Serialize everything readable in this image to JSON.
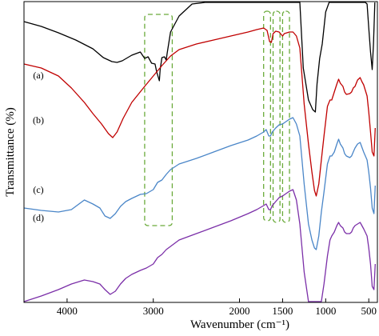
{
  "chart_data": {
    "type": "line",
    "xlabel": "Wavenumber (cm⁻¹)",
    "ylabel": "Transmittance (%)",
    "xlim": [
      4500,
      400
    ],
    "x_reversed": true,
    "xticks": [
      4000,
      3000,
      2000,
      1500,
      1000,
      500
    ],
    "y_ticks_shown": false,
    "grid": false,
    "series": [
      {
        "name": "(a)",
        "color": "#000000",
        "points": [
          [
            4500,
            118
          ],
          [
            4300,
            112
          ],
          [
            4100,
            104
          ],
          [
            3900,
            95
          ],
          [
            3700,
            84
          ],
          [
            3580,
            73
          ],
          [
            3480,
            68
          ],
          [
            3420,
            67
          ],
          [
            3360,
            69
          ],
          [
            3250,
            76
          ],
          [
            3150,
            80
          ],
          [
            3100,
            72
          ],
          [
            3060,
            74
          ],
          [
            3020,
            66
          ],
          [
            2980,
            65
          ],
          [
            2960,
            55
          ],
          [
            2930,
            44
          ],
          [
            2920,
            58
          ],
          [
            2900,
            73
          ],
          [
            2870,
            74
          ],
          [
            2850,
            70
          ],
          [
            2840,
            78
          ],
          [
            2800,
            105
          ],
          [
            2700,
            125
          ],
          [
            2550,
            140
          ],
          [
            2400,
            150
          ],
          [
            2200,
            158
          ],
          [
            2000,
            166
          ],
          [
            1900,
            170
          ],
          [
            1800,
            176
          ],
          [
            1750,
            180
          ],
          [
            1700,
            182
          ],
          [
            1660,
            183
          ],
          [
            1640,
            174
          ],
          [
            1620,
            175
          ],
          [
            1590,
            183
          ],
          [
            1560,
            184
          ],
          [
            1520,
            175
          ],
          [
            1500,
            168
          ],
          [
            1480,
            176
          ],
          [
            1460,
            184
          ],
          [
            1420,
            182
          ],
          [
            1380,
            176
          ],
          [
            1340,
            170
          ],
          [
            1300,
            150
          ],
          [
            1260,
            60
          ],
          [
            1200,
            20
          ],
          [
            1150,
            8
          ],
          [
            1120,
            5
          ],
          [
            1100,
            40
          ],
          [
            1070,
            72
          ],
          [
            1040,
            90
          ],
          [
            1000,
            130
          ],
          [
            960,
            160
          ],
          [
            930,
            172
          ],
          [
            910,
            166
          ],
          [
            880,
            150
          ],
          [
            860,
            170
          ],
          [
            840,
            200
          ],
          [
            820,
            200
          ],
          [
            800,
            198
          ],
          [
            780,
            183
          ],
          [
            760,
            180
          ],
          [
            720,
            180
          ],
          [
            700,
            190
          ],
          [
            660,
            190
          ],
          [
            640,
            180
          ],
          [
            620,
            177
          ],
          [
            600,
            167
          ],
          [
            580,
            157
          ],
          [
            560,
            150
          ],
          [
            540,
            147
          ],
          [
            520,
            140
          ],
          [
            500,
            110
          ],
          [
            480,
            80
          ],
          [
            460,
            58
          ],
          [
            445,
            90
          ],
          [
            430,
            175
          ]
        ]
      },
      {
        "name": "(b)",
        "color": "#c00000",
        "points": [
          [
            4500,
            90
          ],
          [
            4300,
            85
          ],
          [
            4100,
            75
          ],
          [
            3950,
            60
          ],
          [
            3800,
            42
          ],
          [
            3700,
            28
          ],
          [
            3600,
            15
          ],
          [
            3520,
            3
          ],
          [
            3470,
            -2
          ],
          [
            3420,
            5
          ],
          [
            3350,
            22
          ],
          [
            3250,
            42
          ],
          [
            3100,
            62
          ],
          [
            3000,
            75
          ],
          [
            2900,
            88
          ],
          [
            2800,
            100
          ],
          [
            2700,
            108
          ],
          [
            2500,
            115
          ],
          [
            2300,
            120
          ],
          [
            2100,
            125
          ],
          [
            1900,
            130
          ],
          [
            1800,
            133
          ],
          [
            1720,
            135
          ],
          [
            1680,
            132
          ],
          [
            1650,
            118
          ],
          [
            1630,
            117
          ],
          [
            1610,
            128
          ],
          [
            1580,
            131
          ],
          [
            1540,
            130
          ],
          [
            1500,
            125
          ],
          [
            1480,
            128
          ],
          [
            1420,
            130
          ],
          [
            1380,
            130
          ],
          [
            1340,
            125
          ],
          [
            1300,
            110
          ],
          [
            1250,
            40
          ],
          [
            1200,
            -10
          ],
          [
            1160,
            -45
          ],
          [
            1130,
            -68
          ],
          [
            1110,
            -75
          ],
          [
            1080,
            -60
          ],
          [
            1050,
            -30
          ],
          [
            1020,
            0
          ],
          [
            980,
            37
          ],
          [
            950,
            45
          ],
          [
            930,
            45
          ],
          [
            900,
            55
          ],
          [
            870,
            65
          ],
          [
            850,
            71
          ],
          [
            830,
            66
          ],
          [
            800,
            62
          ],
          [
            780,
            55
          ],
          [
            760,
            52
          ],
          [
            720,
            53
          ],
          [
            700,
            55
          ],
          [
            680,
            60
          ],
          [
            660,
            62
          ],
          [
            630,
            70
          ],
          [
            600,
            73
          ],
          [
            580,
            68
          ],
          [
            560,
            64
          ],
          [
            520,
            50
          ],
          [
            500,
            30
          ],
          [
            480,
            5
          ],
          [
            460,
            -20
          ],
          [
            440,
            -25
          ],
          [
            425,
            10
          ]
        ]
      },
      {
        "name": "(c)",
        "color": "#4a86c8",
        "points": [
          [
            4500,
            -20
          ],
          [
            4300,
            -23
          ],
          [
            4100,
            -25
          ],
          [
            3950,
            -22
          ],
          [
            3800,
            -10
          ],
          [
            3700,
            -15
          ],
          [
            3620,
            -20
          ],
          [
            3560,
            -30
          ],
          [
            3500,
            -33
          ],
          [
            3440,
            -27
          ],
          [
            3380,
            -18
          ],
          [
            3320,
            -12
          ],
          [
            3250,
            -8
          ],
          [
            3150,
            -3
          ],
          [
            3080,
            -2
          ],
          [
            3000,
            3
          ],
          [
            2950,
            12
          ],
          [
            2900,
            15
          ],
          [
            2850,
            22
          ],
          [
            2800,
            28
          ],
          [
            2700,
            35
          ],
          [
            2500,
            42
          ],
          [
            2300,
            50
          ],
          [
            2100,
            58
          ],
          [
            1900,
            65
          ],
          [
            1800,
            70
          ],
          [
            1720,
            75
          ],
          [
            1690,
            78
          ],
          [
            1660,
            70
          ],
          [
            1640,
            70
          ],
          [
            1620,
            75
          ],
          [
            1580,
            80
          ],
          [
            1540,
            84
          ],
          [
            1500,
            85
          ],
          [
            1460,
            88
          ],
          [
            1420,
            91
          ],
          [
            1380,
            93
          ],
          [
            1340,
            85
          ],
          [
            1300,
            70
          ],
          [
            1250,
            10
          ],
          [
            1200,
            -40
          ],
          [
            1160,
            -60
          ],
          [
            1130,
            -70
          ],
          [
            1110,
            -72
          ],
          [
            1080,
            -55
          ],
          [
            1050,
            -25
          ],
          [
            1020,
            0
          ],
          [
            980,
            35
          ],
          [
            950,
            45
          ],
          [
            930,
            45
          ],
          [
            900,
            50
          ],
          [
            870,
            60
          ],
          [
            850,
            66
          ],
          [
            830,
            60
          ],
          [
            800,
            55
          ],
          [
            780,
            48
          ],
          [
            760,
            45
          ],
          [
            720,
            43
          ],
          [
            700,
            45
          ],
          [
            680,
            50
          ],
          [
            660,
            55
          ],
          [
            630,
            60
          ],
          [
            600,
            62
          ],
          [
            580,
            56
          ],
          [
            560,
            50
          ],
          [
            520,
            40
          ],
          [
            500,
            25
          ],
          [
            480,
            5
          ],
          [
            460,
            -20
          ],
          [
            440,
            -27
          ],
          [
            425,
            8
          ]
        ]
      },
      {
        "name": "(d)",
        "color": "#7b2fa8",
        "points": [
          [
            4500,
            -78
          ],
          [
            4300,
            -70
          ],
          [
            4100,
            -62
          ],
          [
            3950,
            -55
          ],
          [
            3800,
            -50
          ],
          [
            3700,
            -52
          ],
          [
            3620,
            -55
          ],
          [
            3560,
            -62
          ],
          [
            3500,
            -68
          ],
          [
            3440,
            -64
          ],
          [
            3380,
            -55
          ],
          [
            3320,
            -48
          ],
          [
            3250,
            -43
          ],
          [
            3150,
            -38
          ],
          [
            3080,
            -35
          ],
          [
            3000,
            -30
          ],
          [
            2950,
            -22
          ],
          [
            2900,
            -18
          ],
          [
            2850,
            -12
          ],
          [
            2800,
            -8
          ],
          [
            2700,
            0
          ],
          [
            2500,
            8
          ],
          [
            2300,
            16
          ],
          [
            2100,
            24
          ],
          [
            1900,
            33
          ],
          [
            1800,
            38
          ],
          [
            1720,
            43
          ],
          [
            1690,
            45
          ],
          [
            1660,
            38
          ],
          [
            1640,
            38
          ],
          [
            1620,
            43
          ],
          [
            1580,
            48
          ],
          [
            1540,
            53
          ],
          [
            1500,
            55
          ],
          [
            1460,
            58
          ],
          [
            1420,
            61
          ],
          [
            1380,
            63
          ],
          [
            1340,
            50
          ],
          [
            1300,
            20
          ],
          [
            1250,
            -40
          ],
          [
            1200,
            -90
          ],
          [
            1160,
            -130
          ],
          [
            1130,
            -160
          ],
          [
            1110,
            -172
          ],
          [
            1090,
            -150
          ],
          [
            1070,
            -115
          ],
          [
            1050,
            -90
          ],
          [
            1020,
            -55
          ],
          [
            980,
            -20
          ],
          [
            950,
            0
          ],
          [
            930,
            5
          ],
          [
            900,
            10
          ],
          [
            870,
            18
          ],
          [
            850,
            22
          ],
          [
            830,
            18
          ],
          [
            800,
            15
          ],
          [
            780,
            10
          ],
          [
            760,
            8
          ],
          [
            720,
            8
          ],
          [
            700,
            10
          ],
          [
            680,
            15
          ],
          [
            660,
            18
          ],
          [
            630,
            20
          ],
          [
            600,
            22
          ],
          [
            580,
            18
          ],
          [
            560,
            14
          ],
          [
            520,
            5
          ],
          [
            500,
            -10
          ],
          [
            480,
            -30
          ],
          [
            460,
            -58
          ],
          [
            440,
            -62
          ],
          [
            425,
            -30
          ]
        ]
      }
    ],
    "annotations": {
      "dashed_box_color": "#6aaa3a",
      "boxes": [
        {
          "x_from": 3100,
          "x_to": 2780
        },
        {
          "x_from": 1720,
          "x_to": 1640
        },
        {
          "x_from": 1610,
          "x_to": 1530
        },
        {
          "x_from": 1500,
          "x_to": 1420
        }
      ]
    }
  }
}
